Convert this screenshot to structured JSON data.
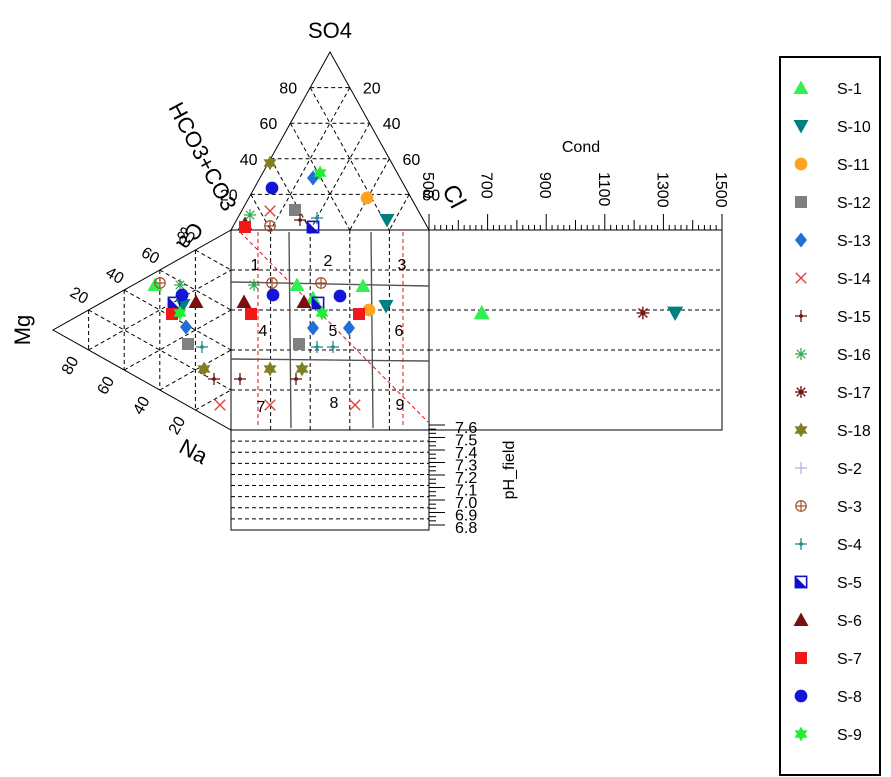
{
  "chart_data": {
    "type": "scatter",
    "subtype": "durov-diagram",
    "title": "",
    "axis_labels": {
      "so4": "SO4",
      "hco3": "HCO3+CO3",
      "cl": "Cl",
      "mg": "Mg",
      "na": "Na",
      "ca": "Ca",
      "cond": "Cond",
      "ph": "pH_field"
    },
    "anion_ticks": {
      "so4_side": [
        "80",
        "60",
        "40",
        "20"
      ],
      "cl_side": [
        "20",
        "40",
        "60",
        "80"
      ]
    },
    "cation_ticks": {
      "ca_side": [
        "80",
        "60",
        "40",
        "20"
      ],
      "na_side": [
        "20",
        "40",
        "60",
        "80"
      ]
    },
    "cond_axis": {
      "ticks": [
        "500",
        "700",
        "900",
        "1100",
        "1300",
        "1500"
      ],
      "range": [
        500,
        1500
      ]
    },
    "ph_axis": {
      "ticks": [
        "7.6",
        "7.5",
        "7.4",
        "7.3",
        "7.2",
        "7.1",
        "7.0",
        "6.9",
        "6.8"
      ],
      "range": [
        6.8,
        7.6
      ]
    },
    "regions": [
      "1",
      "2",
      "3",
      "4",
      "5",
      "6",
      "7",
      "8",
      "9"
    ],
    "legend_position": "right",
    "series": [
      {
        "name": "S-1",
        "marker": "triangle-up",
        "color": "#33ee55"
      },
      {
        "name": "S-10",
        "marker": "triangle-down",
        "color": "#007f7f"
      },
      {
        "name": "S-11",
        "marker": "circle",
        "color": "#ffa21f"
      },
      {
        "name": "S-12",
        "marker": "square",
        "color": "#808080"
      },
      {
        "name": "S-13",
        "marker": "diamond",
        "color": "#1f6fd6"
      },
      {
        "name": "S-14",
        "marker": "x",
        "color": "#e0403a"
      },
      {
        "name": "S-15",
        "marker": "plus-dot",
        "color": "#6b1818"
      },
      {
        "name": "S-16",
        "marker": "asterisk",
        "color": "#2da84a"
      },
      {
        "name": "S-17",
        "marker": "star-burst",
        "color": "#7a1515"
      },
      {
        "name": "S-18",
        "marker": "star",
        "color": "#808020"
      },
      {
        "name": "S-2",
        "marker": "plus-thin",
        "color": "#b0b4e8"
      },
      {
        "name": "S-3",
        "marker": "circle-plus",
        "color": "#a0502a"
      },
      {
        "name": "S-4",
        "marker": "plus-dot",
        "color": "#1f8f8f"
      },
      {
        "name": "S-5",
        "marker": "square-half",
        "color": "#1010cc"
      },
      {
        "name": "S-6",
        "marker": "triangle-up",
        "color": "#7a0f0f"
      },
      {
        "name": "S-7",
        "marker": "square",
        "color": "#f01818"
      },
      {
        "name": "S-8",
        "marker": "circle",
        "color": "#1515d8"
      },
      {
        "name": "S-9",
        "marker": "star",
        "color": "#22ee33"
      }
    ],
    "points": [
      {
        "series": "S-1",
        "anion": [
          313,
          298
        ],
        "cation": [
          155,
          285
        ],
        "square": [
          297,
          285
        ],
        "sq2": [
          363,
          286
        ],
        "cond": 680,
        "ph": null
      },
      {
        "series": "S-10",
        "anion": [
          387,
          220
        ],
        "cation": [
          183,
          305
        ],
        "square": [
          386,
          306
        ],
        "cond": 1340
      },
      {
        "series": "S-11",
        "anion": [
          367,
          198
        ],
        "square": [
          369,
          310
        ]
      },
      {
        "series": "S-12",
        "anion": [
          295,
          210
        ],
        "cation": [
          188,
          344
        ],
        "square": [
          299,
          344
        ]
      },
      {
        "series": "S-13",
        "anion": [
          313,
          178
        ],
        "cation": [
          186,
          327
        ],
        "square": [
          313,
          328
        ],
        "sq2": [
          349,
          328
        ]
      },
      {
        "series": "S-14",
        "anion": [
          270,
          211
        ],
        "cation": [
          220,
          405
        ],
        "square": [
          270,
          405
        ],
        "sq2": [
          355,
          405
        ]
      },
      {
        "series": "S-15",
        "anion": [
          300,
          220
        ],
        "cation": [
          214,
          379
        ],
        "square": [
          240,
          379
        ],
        "sq2": [
          296,
          379
        ]
      },
      {
        "series": "S-16",
        "anion": [
          250,
          215
        ],
        "cation": [
          180,
          285
        ],
        "square": [
          254,
          285
        ]
      },
      {
        "series": "S-17",
        "cond": 1230
      },
      {
        "series": "S-18",
        "anion": [
          270,
          163
        ],
        "cation": [
          204,
          369
        ],
        "square": [
          270,
          369
        ],
        "sq2": [
          302,
          369
        ]
      },
      {
        "series": "S-3",
        "anion": [
          270,
          226
        ],
        "cation": [
          160,
          283
        ],
        "square": [
          272,
          283
        ],
        "sq2": [
          321,
          283
        ]
      },
      {
        "series": "S-4",
        "anion": [
          317,
          218
        ],
        "cation": [
          202,
          347
        ],
        "square": [
          317,
          347
        ],
        "sq2": [
          333,
          347
        ]
      },
      {
        "series": "S-5",
        "anion": [
          313,
          227
        ],
        "cation": [
          174,
          303
        ],
        "square": [
          318,
          303
        ]
      },
      {
        "series": "S-6",
        "anion": [
          245,
          224
        ],
        "cation": [
          196,
          302
        ],
        "square": [
          244,
          302
        ],
        "sq2": [
          304,
          302
        ]
      },
      {
        "series": "S-7",
        "anion": [
          245,
          227
        ],
        "cation": [
          172,
          314
        ],
        "square": [
          251,
          314
        ],
        "sq2": [
          359,
          314
        ]
      },
      {
        "series": "S-8",
        "anion": [
          272,
          188
        ],
        "cation": [
          182,
          295
        ],
        "square": [
          273,
          295
        ],
        "sq2": [
          340,
          296
        ]
      },
      {
        "series": "S-9",
        "anion": [
          320,
          173
        ],
        "cation": [
          180,
          313
        ],
        "square": [
          322,
          313
        ]
      }
    ]
  }
}
